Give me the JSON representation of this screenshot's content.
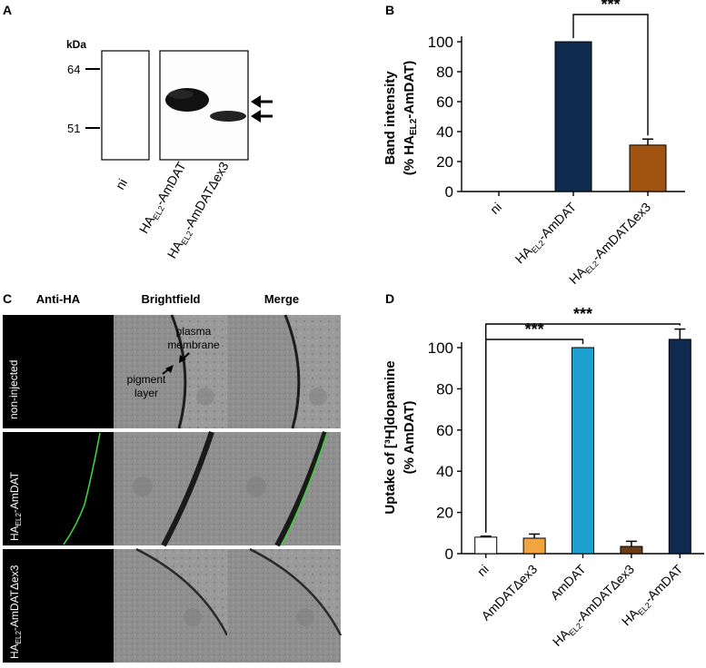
{
  "panel_labels": {
    "a": "A",
    "b": "B",
    "c": "C",
    "d": "D"
  },
  "colors": {
    "navy": "#0e2a4e",
    "brown": "#a0520f",
    "orange": "#f0a540",
    "cyan": "#1ea0d0",
    "darkbrown": "#6d3c12",
    "green": "#3ecf3e",
    "cell_gray": "#8e8e8e"
  },
  "panel_a": {
    "kda_label": "kDa",
    "markers": [
      "64",
      "51"
    ],
    "lanes": [
      {
        "pre": "",
        "sub": "",
        "post": "ni"
      },
      {
        "pre": "HA",
        "sub": "EL2",
        "post": "-AmDAT"
      },
      {
        "pre": "HA",
        "sub": "EL2",
        "post": "-AmDATΔex3"
      }
    ]
  },
  "panel_c": {
    "columns": [
      "Anti-HA",
      "Brightfield",
      "Merge"
    ],
    "rows": [
      {
        "pre": "non-injected",
        "sub": "",
        "post": ""
      },
      {
        "pre": "HA",
        "sub": "EL2",
        "post": "-AmDAT"
      },
      {
        "pre": "HA",
        "sub": "EL2",
        "post": "-AmDATΔex3"
      }
    ],
    "annotations": {
      "pm_line1": "plasma",
      "pm_line2": "membrane",
      "pg_line1": "pigment",
      "pg_line2": "layer"
    }
  },
  "chart_data": [
    {
      "type": "bar",
      "panel": "B",
      "categories": [
        "ni",
        "HA_EL2-AmDAT",
        "HA_EL2-AmDATΔex3"
      ],
      "values": [
        0,
        100,
        31
      ],
      "errors": [
        0,
        0,
        4
      ],
      "colors": [
        "#ffffff",
        "#0e2a4e",
        "#a0520f"
      ],
      "ylim": [
        0,
        100
      ],
      "yticks": [
        0,
        20,
        40,
        60,
        80,
        100
      ],
      "ylabel_line1": "Band intensity",
      "ylabel_line2_pre": "(% HA",
      "ylabel_line2_sub": "EL2",
      "ylabel_line2_post": "-AmDAT)",
      "significance": [
        {
          "from": 1,
          "to": 2,
          "label": "***"
        }
      ]
    },
    {
      "type": "bar",
      "panel": "D",
      "categories": [
        "ni",
        "AmDATΔex3",
        "AmDAT",
        "HA_EL2-AmDATΔex3",
        "HA_EL2-AmDAT"
      ],
      "values": [
        8,
        7.5,
        100,
        3.5,
        104
      ],
      "errors": [
        0.5,
        2,
        0,
        2.5,
        5
      ],
      "colors": [
        "#ffffff",
        "#f0a540",
        "#1ea0d0",
        "#6d3c12",
        "#0e2a4e"
      ],
      "ylim": [
        0,
        100
      ],
      "yticks": [
        0,
        20,
        40,
        60,
        80,
        100
      ],
      "ylabel_line1": "Uptake of [³H]dopamine",
      "ylabel_line2": "(% AmDAT)",
      "significance": [
        {
          "from": 0,
          "to": 2,
          "label": "***"
        },
        {
          "from": 0,
          "to": 4,
          "label": "***"
        }
      ]
    }
  ]
}
